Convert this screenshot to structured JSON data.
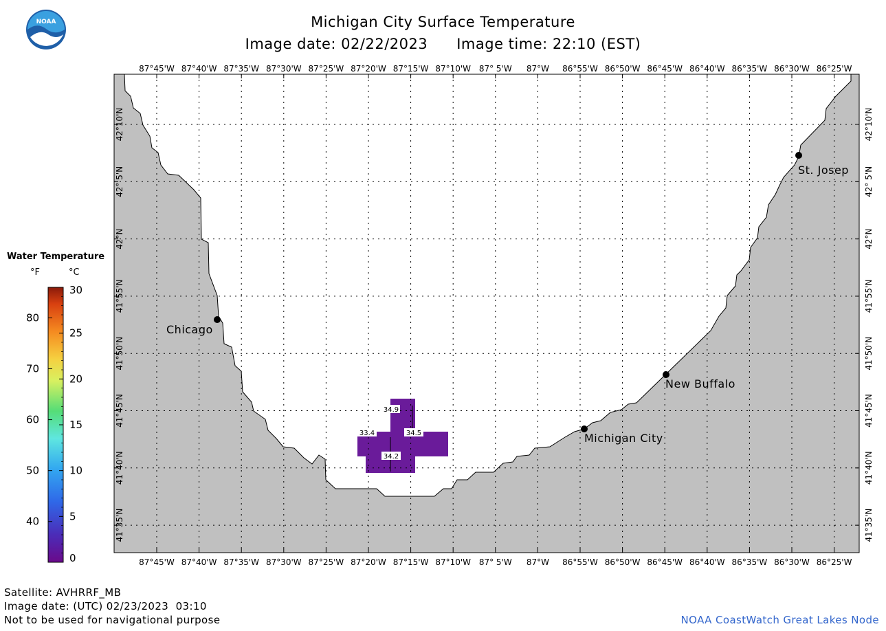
{
  "header": {
    "title": "Michigan City Surface Temperature",
    "image_date": "Image date: 02/22/2023",
    "image_time": "Image time: 22:10 (EST)"
  },
  "logo": {
    "text": "NOAA",
    "icon": "noaa-logo-icon",
    "colors": {
      "sky": "#3aa0e0",
      "sea": "#1f5fa8"
    }
  },
  "map": {
    "colors": {
      "land": "#c0c0c0",
      "water": "#ffffff",
      "frame": "#000000",
      "grid": "#000000",
      "sst": "#6a1b9a"
    },
    "lon_labels": [
      "87°45'W",
      "87°40'W",
      "87°35'W",
      "87°30'W",
      "87°25'W",
      "87°20'W",
      "87°15'W",
      "87°10'W",
      "87° 5'W",
      "87°W",
      "86°55'W",
      "86°50'W",
      "86°45'W",
      "86°40'W",
      "86°35'W",
      "86°30'W",
      "86°25'W"
    ],
    "lat_labels": [
      "42°10'N",
      "42° 5'N",
      "42°N",
      "41°55'N",
      "41°50'N",
      "41°45'N",
      "41°40'N",
      "41°35'N"
    ],
    "cities": [
      {
        "name": "Chicago"
      },
      {
        "name": "St. Josep"
      },
      {
        "name": "New Buffalo"
      },
      {
        "name": "Michigan City"
      }
    ],
    "sst_labels": [
      "34.9",
      "33.4",
      "34.5",
      "34.2"
    ]
  },
  "legend": {
    "title": "Water Temperature",
    "unit_f": "°F",
    "unit_c": "°C",
    "f_ticks": [
      "80",
      "70",
      "60",
      "50",
      "40"
    ],
    "c_ticks": [
      "30",
      "25",
      "20",
      "15",
      "10",
      "5",
      "0"
    ]
  },
  "footer": {
    "satellite": "Satellite: AVHRRF_MB",
    "utc_date": "Image date: (UTC) 02/23/2023  03:10",
    "disclaimer": "Not to be used for navigational purpose",
    "credit": "NOAA CoastWatch Great Lakes Node"
  }
}
